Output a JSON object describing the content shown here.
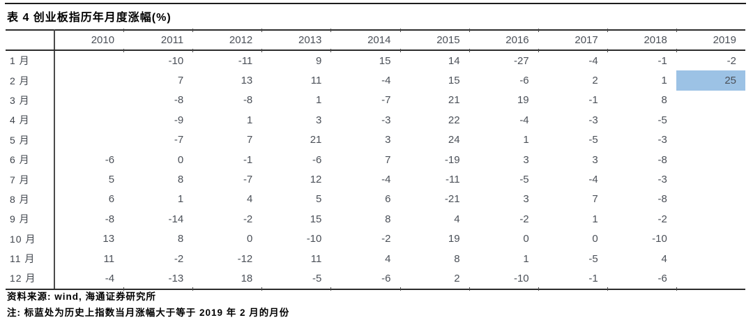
{
  "title": "表 4 创业板指历年月度涨幅(%)",
  "table": {
    "corner_label": "",
    "years": [
      "2010",
      "2011",
      "2012",
      "2013",
      "2014",
      "2015",
      "2016",
      "2017",
      "2018",
      "2019"
    ],
    "rows": [
      {
        "month": "1 月",
        "values": [
          "",
          "-10",
          "-11",
          "9",
          "15",
          "14",
          "-27",
          "-4",
          "-1",
          "-2"
        ]
      },
      {
        "month": "2 月",
        "values": [
          "",
          "7",
          "13",
          "11",
          "-4",
          "15",
          "-6",
          "2",
          "1",
          "25"
        ]
      },
      {
        "month": "3 月",
        "values": [
          "",
          "-8",
          "-8",
          "1",
          "-7",
          "21",
          "19",
          "-1",
          "8",
          ""
        ]
      },
      {
        "month": "4 月",
        "values": [
          "",
          "-9",
          "1",
          "3",
          "-3",
          "22",
          "-4",
          "-3",
          "-5",
          ""
        ]
      },
      {
        "month": "5 月",
        "values": [
          "",
          "-7",
          "7",
          "21",
          "3",
          "24",
          "1",
          "-5",
          "-3",
          ""
        ]
      },
      {
        "month": "6 月",
        "values": [
          "-6",
          "0",
          "-1",
          "-6",
          "7",
          "-19",
          "3",
          "3",
          "-8",
          ""
        ]
      },
      {
        "month": "7 月",
        "values": [
          "5",
          "8",
          "-7",
          "12",
          "-4",
          "-11",
          "-5",
          "-4",
          "-3",
          ""
        ]
      },
      {
        "month": "8 月",
        "values": [
          "6",
          "1",
          "4",
          "5",
          "6",
          "-21",
          "3",
          "7",
          "-8",
          ""
        ]
      },
      {
        "month": "9 月",
        "values": [
          "-8",
          "-14",
          "-2",
          "15",
          "8",
          "4",
          "-2",
          "1",
          "-2",
          ""
        ]
      },
      {
        "month": "10 月",
        "values": [
          "13",
          "8",
          "0",
          "-10",
          "-2",
          "19",
          "0",
          "0",
          "-10",
          ""
        ]
      },
      {
        "month": "11 月",
        "values": [
          "11",
          "-2",
          "-12",
          "11",
          "4",
          "8",
          "1",
          "-5",
          "4",
          ""
        ]
      },
      {
        "month": "12 月",
        "values": [
          "-4",
          "-13",
          "18",
          "-5",
          "-6",
          "2",
          "-10",
          "-1",
          "-6",
          ""
        ]
      }
    ],
    "highlight": {
      "row_index": 1,
      "col_index": 9,
      "color": "#9cc2e5",
      "value": "25"
    }
  },
  "footer": {
    "source": "资料来源: wind, 海通证券研究所",
    "note": "注: 标蓝处为历史上指数当月涨幅大于等于 2019 年 2 月的月份"
  },
  "colors": {
    "text": "#4b5058",
    "rule": "#2b2b2b",
    "highlight": "#9cc2e5"
  }
}
